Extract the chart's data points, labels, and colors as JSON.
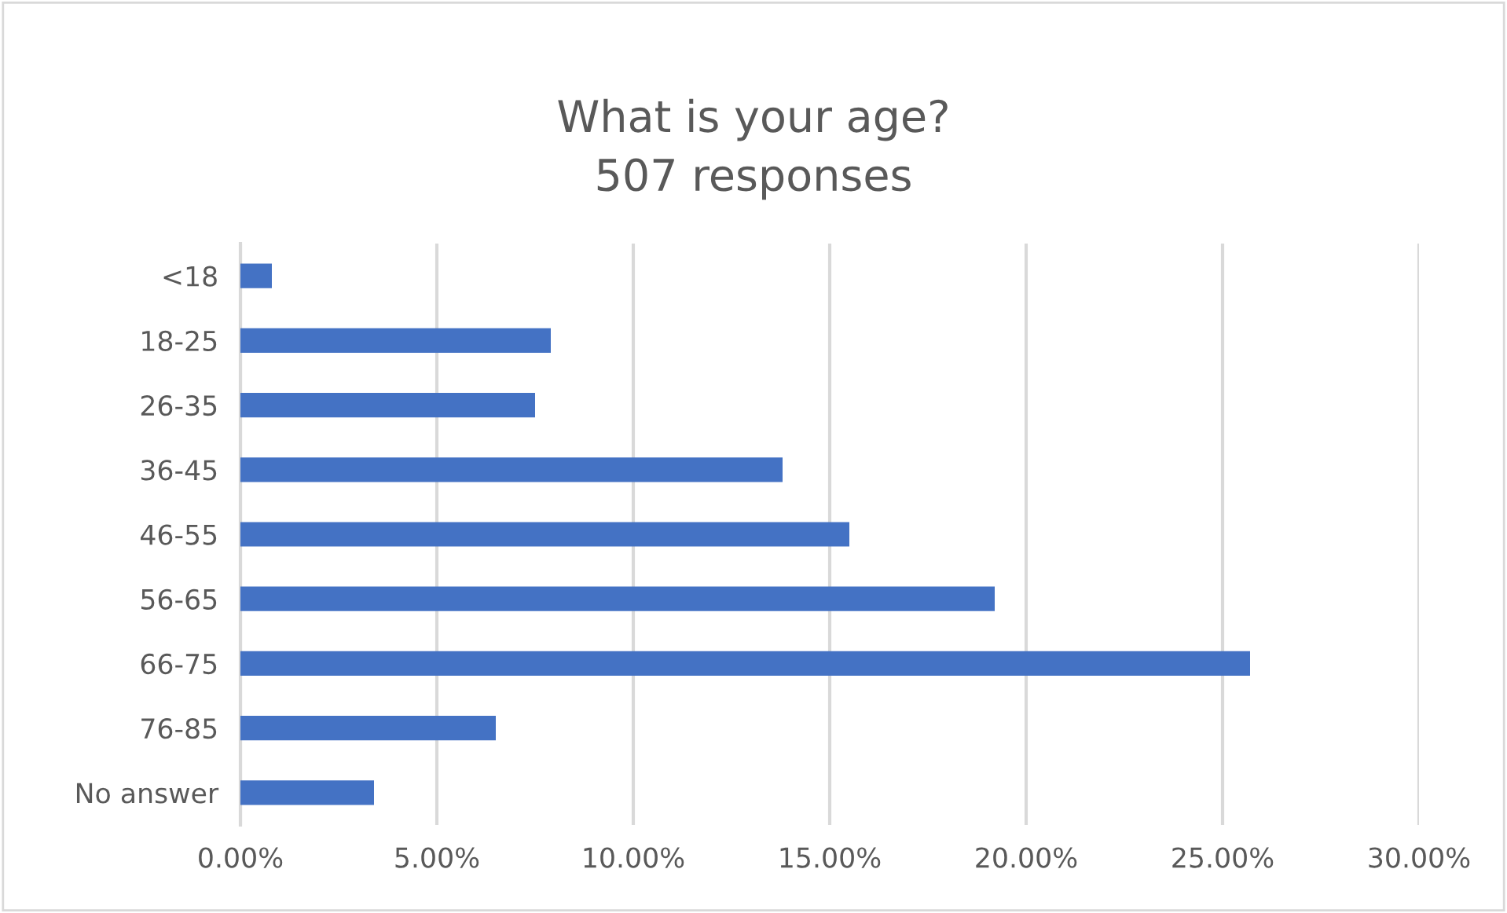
{
  "chart_data": {
    "type": "bar",
    "orientation": "horizontal",
    "title": "What is your age?\n507 responses",
    "categories": [
      "<18",
      "18-25",
      "26-35",
      "36-45",
      "46-55",
      "56-65",
      "66-75",
      "76-85",
      "No answer"
    ],
    "values": [
      0.8,
      7.9,
      7.5,
      13.8,
      15.5,
      19.2,
      25.7,
      6.5,
      3.4
    ],
    "color": "#4472c4",
    "xlim": [
      0,
      30
    ],
    "xticks": [
      {
        "value": 0,
        "label": "0.00%"
      },
      {
        "value": 5,
        "label": "5.00%"
      },
      {
        "value": 10,
        "label": "10.00%"
      },
      {
        "value": 15,
        "label": "15.00%"
      },
      {
        "value": 20,
        "label": "20.00%"
      },
      {
        "value": 25,
        "label": "25.00%"
      },
      {
        "value": 30,
        "label": "30.00%"
      }
    ],
    "grid": "x"
  }
}
